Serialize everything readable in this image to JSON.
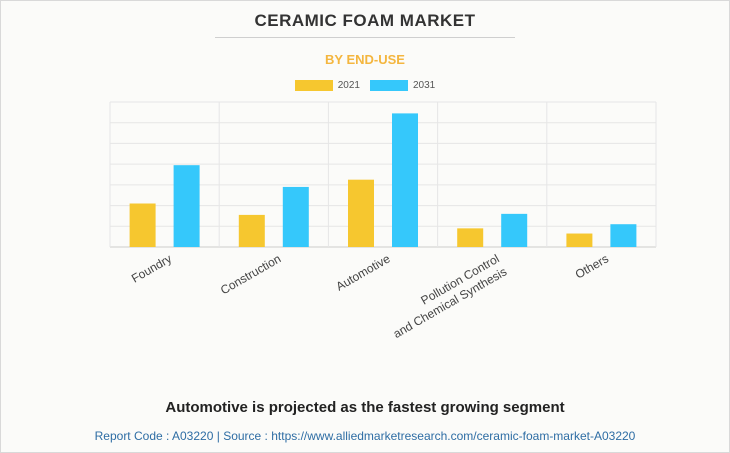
{
  "title": "CERAMIC FOAM MARKET",
  "subtitle": "BY END-USE",
  "footer": {
    "headline": "Automotive is projected as the fastest growing segment",
    "report_code_label": "Report Code : A03220",
    "separator": "|",
    "source_label": "Source : https://www.alliedmarketresearch.com/ceramic-foam-market-A03220"
  },
  "chart_data": {
    "type": "bar",
    "categories": [
      [
        "Foundry"
      ],
      [
        "Construction"
      ],
      [
        "Automotive"
      ],
      [
        "Pollution Control",
        "and Chemical Synthesis"
      ],
      [
        "Others"
      ]
    ],
    "series": [
      {
        "name": "2021",
        "color": "#f6c72f",
        "values": [
          2.1,
          1.55,
          3.25,
          0.9,
          0.65
        ]
      },
      {
        "name": "2031",
        "color": "#35c8fb",
        "values": [
          3.95,
          2.9,
          6.45,
          1.6,
          1.1
        ]
      }
    ],
    "ylim": [
      0,
      7
    ],
    "yticks": [
      0,
      1,
      2,
      3,
      4,
      5,
      6,
      7
    ],
    "y_tick_labels_visible": false,
    "grid": true,
    "legend_position": "top-center",
    "xlabel": "",
    "ylabel": ""
  }
}
